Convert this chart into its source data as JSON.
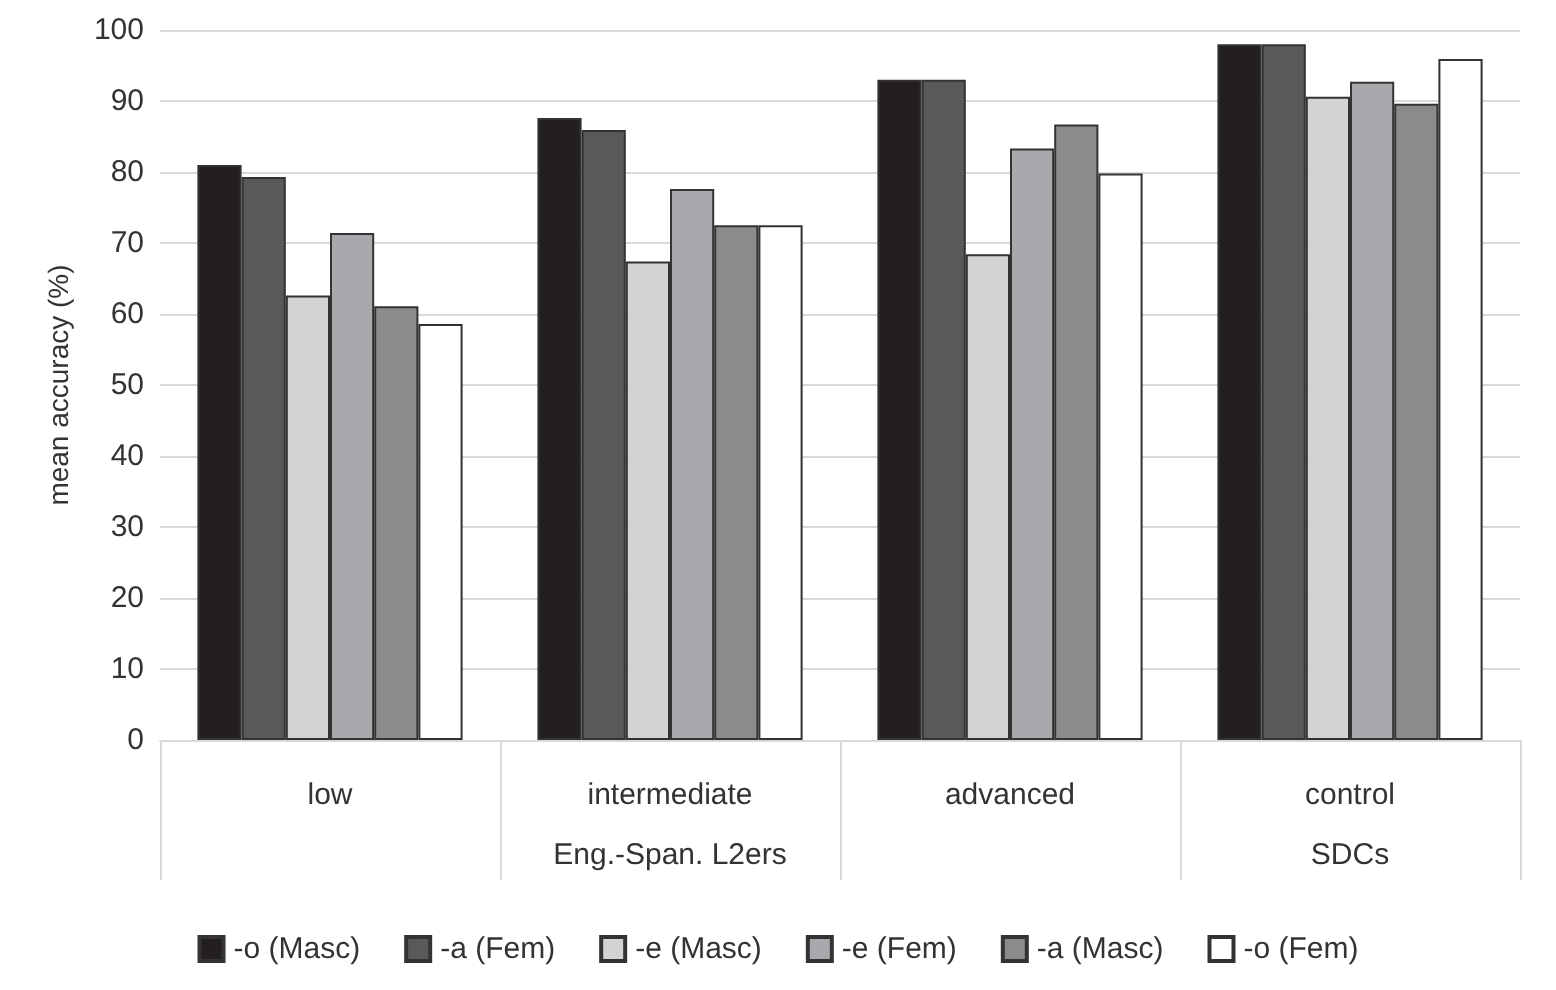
{
  "chart_data": {
    "type": "bar",
    "ylabel": "mean accuracy (%)",
    "categories": [
      "low",
      "intermediate",
      "advanced",
      "control"
    ],
    "series": [
      {
        "name": "-o (Masc)",
        "color": "#231f20",
        "values": [
          81,
          87.6,
          93,
          98
        ]
      },
      {
        "name": "-a (Fem)",
        "color": "#58595b",
        "values": [
          79.3,
          85.9,
          93,
          98
        ]
      },
      {
        "name": "-e (Masc)",
        "color": "#d1d3d4",
        "values": [
          62.6,
          67.4,
          68.4,
          90.6
        ]
      },
      {
        "name": "-e (Fem)",
        "color": "#a7a9ac",
        "values": [
          71.4,
          77.6,
          83.3,
          92.7
        ]
      },
      {
        "name": "-a (Masc)",
        "color": "#8a8b8d",
        "values": [
          61.1,
          72.5,
          86.7,
          89.6
        ]
      },
      {
        "name": "-o (Fem)",
        "color": "#ffffff",
        "values": [
          58.6,
          72.5,
          79.8,
          95.9
        ]
      }
    ],
    "annotations": [
      "Eng.-Span. L2ers",
      "SDCs"
    ],
    "ylim": [
      0,
      100
    ],
    "yticks": [
      0,
      10,
      20,
      30,
      40,
      50,
      60,
      70,
      80,
      90,
      100
    ],
    "grid": "y",
    "legend": "bottom"
  }
}
